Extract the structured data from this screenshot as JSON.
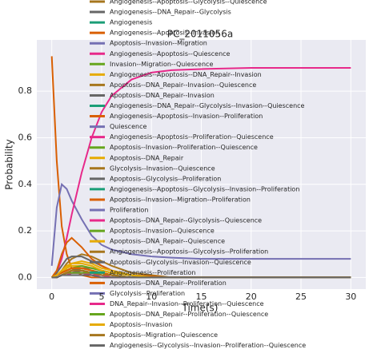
{
  "chart_data": {
    "type": "line",
    "title": "PC_2011056a",
    "x_label": "Time(s)",
    "y_label": "Probability",
    "x": [
      0,
      0.5,
      1,
      1.5,
      2,
      3,
      4,
      5,
      6,
      8,
      10,
      12,
      15,
      20,
      25,
      30
    ],
    "xlim": [
      -1.5,
      31.5
    ],
    "xticks": [
      0,
      5,
      10,
      15,
      20,
      25,
      30
    ],
    "ylim": [
      -0.05,
      1.02
    ],
    "yticks": [
      0.0,
      0.2,
      0.4,
      0.6,
      0.8
    ],
    "grid": true,
    "series": [
      {
        "name": "Angiogenesis--Apoptosis--Glycolysis--Quiescence",
        "color": "#a6761d",
        "values": [
          0,
          0,
          0.01,
          0.02,
          0.03,
          0.04,
          0.03,
          0.02,
          0.01,
          0,
          0,
          0,
          0,
          0,
          0,
          0
        ]
      },
      {
        "name": "Angiogenesis--DNA_Repair--Glycolysis",
        "color": "#666666",
        "values": [
          0,
          0,
          0.01,
          0.02,
          0.02,
          0.03,
          0.02,
          0.01,
          0.01,
          0,
          0,
          0,
          0,
          0,
          0,
          0
        ]
      },
      {
        "name": "Angiogenesis",
        "color": "#1b9e77",
        "values": [
          0,
          0.01,
          0.02,
          0.03,
          0.04,
          0.04,
          0.03,
          0.02,
          0.01,
          0,
          0,
          0,
          0,
          0,
          0,
          0
        ]
      },
      {
        "name": "Angiogenesis--Apoptosis--Invasion",
        "color": "#d95f02",
        "values": [
          0.95,
          0.5,
          0.22,
          0.1,
          0.04,
          0.01,
          0,
          0,
          0,
          0,
          0,
          0,
          0,
          0,
          0,
          0
        ]
      },
      {
        "name": "Apoptosis--Invasion--Migration",
        "color": "#7570b3",
        "values": [
          0.05,
          0.3,
          0.4,
          0.38,
          0.33,
          0.25,
          0.18,
          0.14,
          0.12,
          0.1,
          0.09,
          0.085,
          0.08,
          0.08,
          0.08,
          0.08
        ]
      },
      {
        "name": "Angiogenesis--Apoptosis--Quiescence",
        "color": "#e7298a",
        "values": [
          0,
          0.02,
          0.08,
          0.17,
          0.27,
          0.45,
          0.6,
          0.71,
          0.78,
          0.85,
          0.88,
          0.89,
          0.895,
          0.9,
          0.9,
          0.9
        ]
      },
      {
        "name": "Invasion--Migration--Quiescence",
        "color": "#66a61e",
        "values": [
          0,
          0,
          0.01,
          0.02,
          0.03,
          0.04,
          0.03,
          0.02,
          0.01,
          0,
          0,
          0,
          0,
          0,
          0,
          0
        ]
      },
      {
        "name": "Angiogenesis--Apoptosis--DNA_Repair--Invasion",
        "color": "#e6ab02",
        "values": [
          0,
          0.01,
          0.02,
          0.04,
          0.05,
          0.05,
          0.04,
          0.03,
          0.02,
          0.01,
          0,
          0,
          0,
          0,
          0,
          0
        ]
      },
      {
        "name": "Apoptosis--DNA_Repair--Invasion--Quiescence",
        "color": "#a6761d",
        "values": [
          0,
          0.01,
          0.03,
          0.06,
          0.08,
          0.1,
          0.09,
          0.07,
          0.05,
          0.02,
          0.01,
          0,
          0,
          0,
          0,
          0
        ]
      },
      {
        "name": "Apoptosis--DNA_Repair--Invasion",
        "color": "#666666",
        "values": [
          0,
          0.02,
          0.05,
          0.08,
          0.09,
          0.09,
          0.07,
          0.05,
          0.03,
          0.01,
          0,
          0,
          0,
          0,
          0,
          0
        ]
      },
      {
        "name": "Angiogenesis--DNA_Repair--Glycolysis--Invasion--Quiescence",
        "color": "#1b9e77",
        "values": [
          0,
          0,
          0.01,
          0.01,
          0.02,
          0.02,
          0.02,
          0.01,
          0.01,
          0,
          0,
          0,
          0,
          0,
          0,
          0
        ]
      },
      {
        "name": "Angiogenesis--Apoptosis--Invasion--Proliferation",
        "color": "#d95f02",
        "values": [
          0,
          0.03,
          0.1,
          0.15,
          0.17,
          0.13,
          0.08,
          0.05,
          0.03,
          0.01,
          0.005,
          0,
          0,
          0,
          0,
          0
        ]
      },
      {
        "name": "Quiescence",
        "color": "#7570b3",
        "values": [
          0,
          0,
          0.01,
          0.02,
          0.02,
          0.02,
          0.02,
          0.01,
          0.01,
          0,
          0,
          0,
          0,
          0,
          0,
          0
        ]
      },
      {
        "name": "Angiogenesis--Apoptosis--Proliferation--Quiescence",
        "color": "#e7298a",
        "values": [
          0,
          0,
          0.01,
          0.02,
          0.03,
          0.03,
          0.02,
          0.01,
          0.01,
          0,
          0,
          0,
          0,
          0,
          0,
          0
        ]
      },
      {
        "name": "Apoptosis--Invasion--Proliferation--Quiescence",
        "color": "#66a61e",
        "values": [
          0,
          0,
          0.01,
          0.02,
          0.03,
          0.03,
          0.02,
          0.02,
          0.01,
          0,
          0,
          0,
          0,
          0,
          0,
          0
        ]
      },
      {
        "name": "Apoptosis--DNA_Repair",
        "color": "#e6ab02",
        "values": [
          0,
          0.01,
          0.02,
          0.04,
          0.06,
          0.07,
          0.06,
          0.04,
          0.03,
          0.01,
          0,
          0,
          0,
          0,
          0,
          0
        ]
      },
      {
        "name": "Glycolysis--Invasion--Quiescence",
        "color": "#a6761d",
        "values": [
          0,
          0,
          0.01,
          0.01,
          0.02,
          0.02,
          0.02,
          0.01,
          0.01,
          0,
          0,
          0,
          0,
          0,
          0,
          0
        ]
      },
      {
        "name": "Apoptosis--Glycolysis--Proliferation",
        "color": "#666666",
        "values": [
          0,
          0,
          0.01,
          0.02,
          0.03,
          0.04,
          0.04,
          0.03,
          0.02,
          0.01,
          0,
          0,
          0,
          0,
          0,
          0
        ]
      },
      {
        "name": "Angiogenesis--Apoptosis--Glycolysis--Invasion--Proliferation",
        "color": "#1b9e77",
        "values": [
          0,
          0,
          0.01,
          0.01,
          0.02,
          0.02,
          0.02,
          0.01,
          0.01,
          0,
          0,
          0,
          0,
          0,
          0,
          0
        ]
      },
      {
        "name": "Apoptosis--Invasion--Migration--Proliferation",
        "color": "#d95f02",
        "values": [
          0,
          0.01,
          0.02,
          0.03,
          0.04,
          0.04,
          0.03,
          0.02,
          0.01,
          0,
          0,
          0,
          0,
          0,
          0,
          0
        ]
      },
      {
        "name": "Proliferation",
        "color": "#7570b3",
        "values": [
          0,
          0,
          0.01,
          0.01,
          0.02,
          0.02,
          0.01,
          0.01,
          0,
          0,
          0,
          0,
          0,
          0,
          0,
          0
        ]
      },
      {
        "name": "Apoptosis--DNA_Repair--Glycolysis--Quiescence",
        "color": "#e7298a",
        "values": [
          0,
          0,
          0.01,
          0.01,
          0.02,
          0.02,
          0.02,
          0.01,
          0.01,
          0,
          0,
          0,
          0,
          0,
          0,
          0
        ]
      },
      {
        "name": "Apoptosis--Invasion--Quiescence",
        "color": "#66a61e",
        "values": [
          0,
          0.01,
          0.02,
          0.03,
          0.04,
          0.05,
          0.04,
          0.03,
          0.02,
          0.01,
          0,
          0,
          0,
          0,
          0,
          0
        ]
      },
      {
        "name": "Apoptosis--DNA_Repair--Quiescence",
        "color": "#e6ab02",
        "values": [
          0,
          0.01,
          0.02,
          0.03,
          0.04,
          0.04,
          0.03,
          0.02,
          0.01,
          0,
          0,
          0,
          0,
          0,
          0,
          0
        ]
      },
      {
        "name": "Angiogenesis--Apoptosis--Glycolysis--Proliferation",
        "color": "#a6761d",
        "values": [
          0,
          0,
          0.01,
          0.02,
          0.03,
          0.03,
          0.02,
          0.02,
          0.01,
          0,
          0,
          0,
          0,
          0,
          0,
          0
        ]
      },
      {
        "name": "Apoptosis--Glycolysis--Invasion--Quiescence",
        "color": "#666666",
        "values": [
          0,
          0,
          0.01,
          0.02,
          0.02,
          0.03,
          0.02,
          0.02,
          0.01,
          0,
          0,
          0,
          0,
          0,
          0,
          0
        ]
      },
      {
        "name": "Angiogenesis--Proliferation",
        "color": "#1b9e77",
        "values": [
          0,
          0,
          0.01,
          0.01,
          0.01,
          0.01,
          0.01,
          0.01,
          0,
          0,
          0,
          0,
          0,
          0,
          0,
          0
        ]
      },
      {
        "name": "Apoptosis--DNA_Repair--Proliferation",
        "color": "#d95f02",
        "values": [
          0,
          0.01,
          0.02,
          0.03,
          0.04,
          0.04,
          0.03,
          0.02,
          0.01,
          0,
          0,
          0,
          0,
          0,
          0,
          0
        ]
      },
      {
        "name": "Glycolysis--Proliferation",
        "color": "#7570b3",
        "values": [
          0,
          0,
          0.01,
          0.01,
          0.01,
          0.01,
          0.01,
          0,
          0,
          0,
          0,
          0,
          0,
          0,
          0,
          0
        ]
      },
      {
        "name": "DNA_Repair--Invasion--Proliferation--Quiescence",
        "color": "#e7298a",
        "values": [
          0,
          0,
          0.01,
          0.01,
          0.02,
          0.02,
          0.01,
          0.01,
          0,
          0,
          0,
          0,
          0,
          0,
          0,
          0
        ]
      },
      {
        "name": "Apoptosis--DNA_Repair--Proliferation--Quiescence",
        "color": "#66a61e",
        "values": [
          0,
          0,
          0.01,
          0.02,
          0.02,
          0.02,
          0.02,
          0.01,
          0.01,
          0,
          0,
          0,
          0,
          0,
          0,
          0
        ]
      },
      {
        "name": "Apoptosis--Invasion",
        "color": "#e6ab02",
        "values": [
          0,
          0.01,
          0.03,
          0.05,
          0.06,
          0.06,
          0.05,
          0.03,
          0.02,
          0.01,
          0,
          0,
          0,
          0,
          0,
          0
        ]
      },
      {
        "name": "Apoptosis--Migration--Quiescence",
        "color": "#a6761d",
        "values": [
          0,
          0,
          0.01,
          0.02,
          0.03,
          0.03,
          0.02,
          0.01,
          0.01,
          0,
          0,
          0,
          0,
          0,
          0,
          0
        ]
      },
      {
        "name": "Angiogenesis--Glycolysis--Invasion--Proliferation--Quiescence",
        "color": "#666666",
        "values": [
          0,
          0,
          0.01,
          0.01,
          0.01,
          0.01,
          0.01,
          0,
          0,
          0,
          0,
          0,
          0,
          0,
          0,
          0
        ]
      }
    ]
  }
}
